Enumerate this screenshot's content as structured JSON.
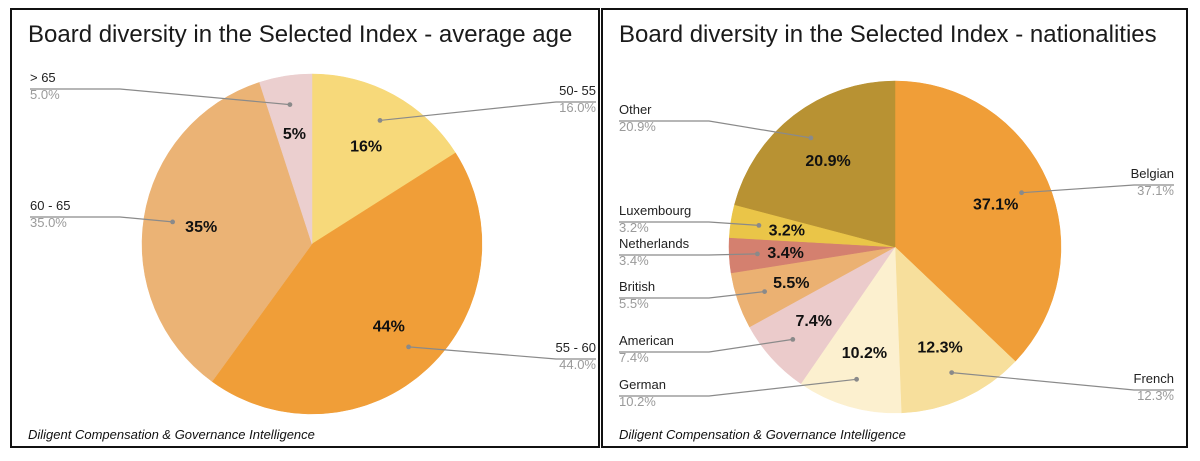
{
  "chart_data": [
    {
      "type": "pie",
      "title": "Board diversity in the Selected Index - average age",
      "source": "Diligent Compensation & Governance Intelligence",
      "slices": [
        {
          "label": "50- 55",
          "value": 16.0,
          "percent_label": "16%",
          "legend_value": "16.0%",
          "color": "#f7d97a"
        },
        {
          "label": "55 - 60",
          "value": 44.0,
          "percent_label": "44%",
          "legend_value": "44.0%",
          "color": "#f09e38"
        },
        {
          "label": "60 - 65",
          "value": 35.0,
          "percent_label": "35%",
          "legend_value": "35.0%",
          "color": "#ebb375"
        },
        {
          "label": "> 65",
          "value": 5.0,
          "percent_label": "5%",
          "legend_value": "5.0%",
          "color": "#ebcfcf"
        }
      ]
    },
    {
      "type": "pie",
      "title": "Board diversity in the Selected Index - nationalities",
      "source": "Diligent Compensation & Governance Intelligence",
      "slices": [
        {
          "label": "Belgian",
          "value": 37.1,
          "percent_label": "37.1%",
          "legend_value": "37.1%",
          "color": "#f09e38"
        },
        {
          "label": "French",
          "value": 12.3,
          "percent_label": "12.3%",
          "legend_value": "12.3%",
          "color": "#f7df9c"
        },
        {
          "label": "German",
          "value": 10.2,
          "percent_label": "10.2%",
          "legend_value": "10.2%",
          "color": "#fcf0cf"
        },
        {
          "label": "American",
          "value": 7.4,
          "percent_label": "7.4%",
          "legend_value": "7.4%",
          "color": "#ebcbcb"
        },
        {
          "label": "British",
          "value": 5.5,
          "percent_label": "5.5%",
          "legend_value": "5.5%",
          "color": "#ebb172"
        },
        {
          "label": "Netherlands",
          "value": 3.4,
          "percent_label": "3.4%",
          "legend_value": "3.4%",
          "color": "#d4806f"
        },
        {
          "label": "Luxembourg",
          "value": 3.2,
          "percent_label": "3.2%",
          "legend_value": "3.2%",
          "color": "#eac548"
        },
        {
          "label": "Other",
          "value": 20.9,
          "percent_label": "20.9%",
          "legend_value": "20.9%",
          "color": "#b89233"
        }
      ]
    }
  ]
}
